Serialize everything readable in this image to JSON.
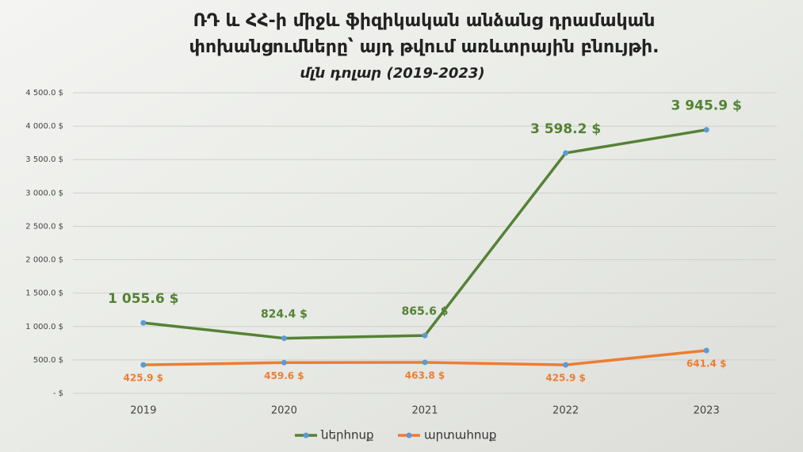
{
  "chart_data": {
    "type": "line",
    "title": [
      "ՌԴ և ՀՀ-ի միջև ֆիզիկական անձանց դրամական",
      "փոխանցումները՝ այդ թվում առևտրային բնույթի."
    ],
    "subtitle": "մլն դոլար (2019-2023)",
    "categories": [
      "2019",
      "2020",
      "2021",
      "2022",
      "2023"
    ],
    "series": [
      {
        "name": "ներհոսք",
        "color": "#548235",
        "values": [
          1055.6,
          824.4,
          865.6,
          3598.2,
          3945.9
        ],
        "value_labels": [
          "1 055.6 $",
          "824.4 $",
          "865.6 $",
          "3 598.2 $",
          "3 945.9 $"
        ]
      },
      {
        "name": "արտահոսք",
        "color": "#ed7d31",
        "values": [
          425.9,
          459.6,
          463.8,
          425.9,
          641.4
        ],
        "value_labels": [
          "425.9 $",
          "459.6 $",
          "463.8 $",
          "425.9 $",
          "641.4 $"
        ]
      }
    ],
    "ylim": [
      0,
      4500
    ],
    "yticks": [
      {
        "value": 0,
        "label": "-   $"
      },
      {
        "value": 500,
        "label": "500.0 $"
      },
      {
        "value": 1000,
        "label": "1 000.0 $"
      },
      {
        "value": 1500,
        "label": "1 500.0 $"
      },
      {
        "value": 2000,
        "label": "2 000.0 $"
      },
      {
        "value": 2500,
        "label": "2 500.0 $"
      },
      {
        "value": 3000,
        "label": "3 000.0 $"
      },
      {
        "value": 3500,
        "label": "3 500.0 $"
      },
      {
        "value": 4000,
        "label": "4 000.0 $"
      },
      {
        "value": 4500,
        "label": "4 500.0 $"
      }
    ],
    "grid": true,
    "legend": "bottom"
  }
}
